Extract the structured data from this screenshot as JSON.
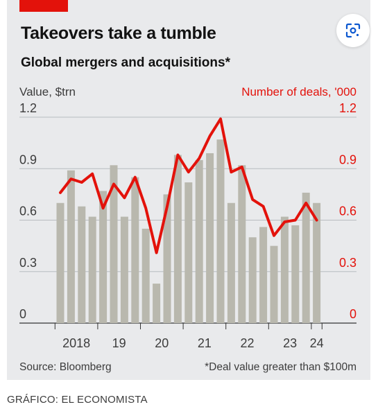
{
  "header": {
    "title": "Takeovers take a tumble",
    "subtitle": "Global mergers and acquisitions*"
  },
  "chart_data": {
    "type": "bar",
    "title": "Takeovers take a tumble",
    "subtitle": "Global mergers and acquisitions*",
    "ylabel_left": "Value, $trn",
    "ylabel_right": "Number of deals, '000",
    "ylim": [
      0,
      1.2
    ],
    "yticks": [
      "1.2",
      "0.9",
      "0.6",
      "0.3",
      "0"
    ],
    "xtick_labels": [
      "2018",
      "19",
      "20",
      "21",
      "22",
      "23",
      "24"
    ],
    "grid": true,
    "x_periods": [
      "2018 Q1",
      "2018 Q2",
      "2018 Q3",
      "2018 Q4",
      "2019 Q1",
      "2019 Q2",
      "2019 Q3",
      "2019 Q4",
      "2020 Q1",
      "2020 Q2",
      "2020 Q3",
      "2020 Q4",
      "2021 Q1",
      "2021 Q2",
      "2021 Q3",
      "2021 Q4",
      "2022 Q1",
      "2022 Q2",
      "2022 Q3",
      "2022 Q4",
      "2023 Q1",
      "2023 Q2",
      "2023 Q3",
      "2023 Q4",
      "2024 Q1"
    ],
    "series": [
      {
        "name": "Value, $trn",
        "type": "bar",
        "color": "#b9b8ae",
        "values": [
          0.7,
          0.89,
          0.68,
          0.62,
          0.77,
          0.92,
          0.62,
          0.85,
          0.55,
          0.23,
          0.75,
          0.98,
          0.82,
          0.95,
          0.99,
          1.07,
          0.7,
          0.92,
          0.5,
          0.56,
          0.45,
          0.62,
          0.57,
          0.76,
          0.7
        ]
      },
      {
        "name": "Number of deals, '000",
        "type": "line",
        "color": "#e3120b",
        "values": [
          0.76,
          0.84,
          0.82,
          0.87,
          0.67,
          0.81,
          0.73,
          0.85,
          0.67,
          0.41,
          0.68,
          0.98,
          0.88,
          0.96,
          1.09,
          1.19,
          0.88,
          0.91,
          0.72,
          0.68,
          0.51,
          0.59,
          0.6,
          0.7,
          0.6
        ]
      }
    ],
    "source": "Source: Bloomberg",
    "footnote": "*Deal value greater than $100m"
  },
  "footer": {
    "credit": "GRÁFICO: EL ECONOMISTA"
  },
  "icons": {
    "lens": "google-lens-icon"
  },
  "colors": {
    "accent": "#e3120b",
    "bar": "#b9b8ae",
    "background": "#e9eaec"
  }
}
